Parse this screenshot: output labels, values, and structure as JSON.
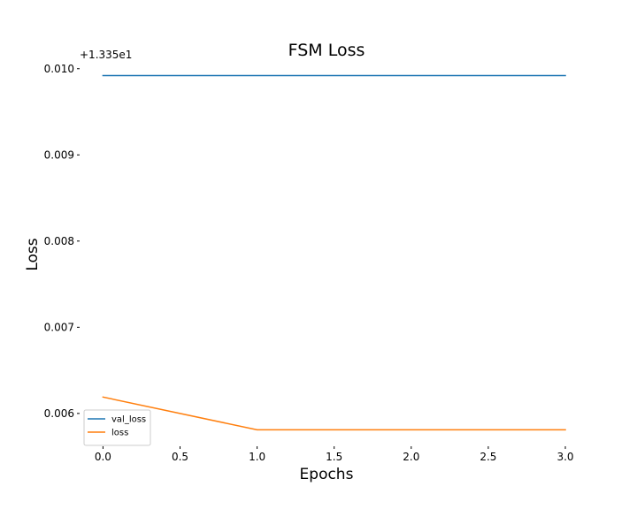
{
  "chart_data": {
    "type": "line",
    "title": "FSM Loss",
    "xlabel": "Epochs",
    "ylabel": "Loss",
    "y_offset_label": "+1.335e1",
    "y_offset": 13.35,
    "x": [
      0,
      1,
      2,
      3
    ],
    "xlim": [
      -0.1,
      3.0
    ],
    "ylim": [
      0.00565,
      0.0101
    ],
    "x_ticks": [
      0.0,
      0.5,
      1.0,
      1.5,
      2.0,
      2.5,
      3.0
    ],
    "x_tick_labels": [
      "0.0",
      "0.5",
      "1.0",
      "1.5",
      "2.0",
      "2.5",
      "3.0"
    ],
    "y_ticks": [
      0.006,
      0.007,
      0.008,
      0.009,
      0.01
    ],
    "y_tick_labels": [
      "0.006",
      "0.007",
      "0.008",
      "0.009",
      "0.010"
    ],
    "grid": false,
    "legend_position": "lower-left",
    "series": [
      {
        "name": "val_loss",
        "color": "#1f77b4",
        "values": [
          0.00992,
          0.00992,
          0.00992,
          0.00992
        ]
      },
      {
        "name": "loss",
        "color": "#ff7f0e",
        "values": [
          0.00619,
          0.00581,
          0.00581,
          0.00581
        ]
      }
    ]
  }
}
